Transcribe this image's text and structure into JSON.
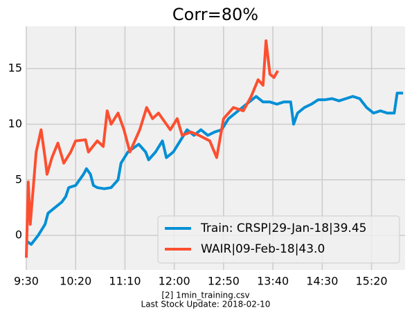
{
  "chart_data": {
    "type": "line",
    "title": "Corr=80%",
    "footer": [
      "[2] 1min_training.csv",
      "Last Stock Update: 2018-02-10"
    ],
    "xlim": [
      0,
      384
    ],
    "ylim": [
      -3.1,
      18.8
    ],
    "xticks": [
      {
        "value": 0,
        "label": "9:30"
      },
      {
        "value": 50,
        "label": "10:20"
      },
      {
        "value": 100,
        "label": "11:10"
      },
      {
        "value": 150,
        "label": "12:00"
      },
      {
        "value": 200,
        "label": "12:50"
      },
      {
        "value": 250,
        "label": "13:40"
      },
      {
        "value": 300,
        "label": "14:30"
      },
      {
        "value": 350,
        "label": "15:20"
      }
    ],
    "yticks": [
      0,
      5,
      10,
      15
    ],
    "grid": true,
    "legend": "lower right",
    "series": [
      {
        "name": "Train: CRSP|29-Jan-18|39.45",
        "color": "#008fd5",
        "x": [
          0,
          5,
          12,
          19,
          22,
          29,
          36,
          40,
          43,
          50,
          54,
          58,
          61,
          65,
          68,
          72,
          79,
          86,
          93,
          96,
          103,
          114,
          121,
          124,
          131,
          138,
          142,
          149,
          156,
          163,
          170,
          177,
          184,
          191,
          198,
          205,
          212,
          219,
          226,
          233,
          240,
          247,
          254,
          261,
          268,
          271,
          275,
          282,
          289,
          296,
          303,
          310,
          317,
          324,
          331,
          338,
          345,
          352,
          359,
          366,
          373,
          376,
          382
        ],
        "values": [
          -0.5,
          -0.8,
          0,
          1.0,
          2,
          2.5,
          3,
          3.5,
          4.3,
          4.5,
          5,
          5.5,
          6,
          5.5,
          4.5,
          4.3,
          4.2,
          4.3,
          5,
          6.5,
          7.5,
          8.2,
          7.5,
          6.8,
          7.5,
          8.5,
          7,
          7.5,
          8.5,
          9.5,
          9,
          9.5,
          9,
          9.3,
          9.5,
          10.5,
          11,
          11.5,
          12,
          12.5,
          12,
          12,
          11.8,
          12,
          12,
          10,
          11,
          11.5,
          11.8,
          12.2,
          12.2,
          12.3,
          12.1,
          12.3,
          12.5,
          12.3,
          11.5,
          11,
          11.2,
          11,
          11,
          12.8,
          12.8
        ]
      },
      {
        "name": "WAIR|09-Feb-18|43.0",
        "color": "#fc4f30",
        "x": [
          0,
          2,
          4,
          10,
          15,
          19,
          21,
          26,
          32,
          38,
          45,
          50,
          60,
          63,
          72,
          78,
          82,
          86,
          93,
          99,
          105,
          115,
          122,
          128,
          134,
          146,
          153,
          158,
          167,
          175,
          186,
          193,
          200,
          210,
          220,
          228,
          235,
          240,
          243,
          247,
          251,
          255
        ],
        "values": [
          -2,
          4.8,
          1,
          7.5,
          9.5,
          7,
          5.5,
          7,
          8.3,
          6.5,
          7.5,
          8.5,
          8.6,
          7.5,
          8.5,
          8.0,
          11.2,
          10,
          11,
          9.5,
          7.5,
          9.5,
          11.5,
          10.5,
          11,
          9.5,
          10.5,
          9,
          9.3,
          9,
          8.5,
          7,
          10.5,
          11.5,
          11.2,
          12.5,
          14,
          13.5,
          17.5,
          14.5,
          14.2,
          14.8
        ]
      }
    ]
  }
}
